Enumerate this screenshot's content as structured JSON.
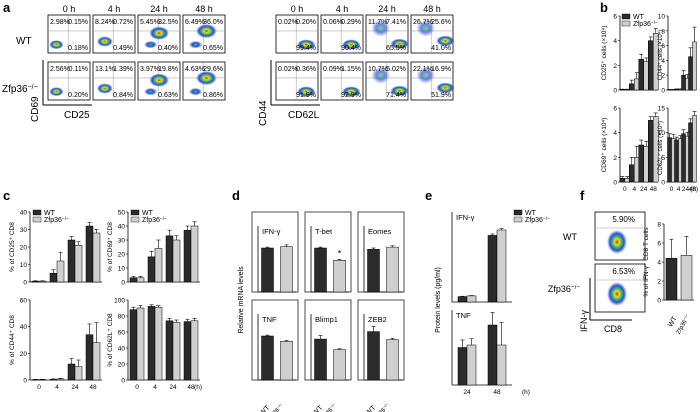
{
  "panel_letters": [
    "a",
    "b",
    "c",
    "d",
    "e",
    "f"
  ],
  "genotypes": {
    "wt": "WT",
    "ko": "Zfp36",
    "ko_sup": "−/−"
  },
  "legend": {
    "wt": "WT",
    "ko": "Zfp36",
    "ko_sup": "−/−"
  },
  "colors": {
    "wt": "#2b2b2b",
    "ko": "#cfcfcf"
  },
  "flow_a": {
    "times": [
      "0 h",
      "4 h",
      "24 h",
      "48 h"
    ],
    "cd69_cd25": {
      "xlabel": "CD25",
      "ylabel": "CD69",
      "wt": [
        [
          "2.98%",
          "0.15%",
          "0.18%"
        ],
        [
          "8.24%",
          "0.72%",
          "0.49%"
        ],
        [
          "5.45%",
          "32.5%",
          "0.40%"
        ],
        [
          "6.49%",
          "36.0%",
          "0.65%"
        ]
      ],
      "ko": [
        [
          "2.56%",
          "0.11%",
          "0.20%"
        ],
        [
          "13.1%",
          "1.39%",
          "0.84%"
        ],
        [
          "3.97%",
          "19.8%",
          "0.63%"
        ],
        [
          "4.63%",
          "29.6%",
          "0.86%"
        ]
      ]
    },
    "cd44_cd62l": {
      "xlabel": "CD62L",
      "ylabel": "CD44",
      "wt": [
        [
          "0.02%",
          "0.20%",
          "99.4%"
        ],
        [
          "0.06%",
          "0.29%",
          "90.4%"
        ],
        [
          "11.7%",
          "7.41%",
          "65.5%"
        ],
        [
          "26.7%",
          "25.6%",
          "41.0%"
        ]
      ],
      "ko": [
        [
          "0.02%",
          "0.36%",
          "91.9%"
        ],
        [
          "0.09%",
          "1.15%",
          "92.9%"
        ],
        [
          "10.7%",
          "5.02%",
          "71.4%"
        ],
        [
          "22.1%",
          "16.9%",
          "51.9%"
        ]
      ]
    }
  },
  "chart_data": [
    {
      "panel": "b",
      "type": "bar",
      "ylabel": "CD25⁺ cells (×10⁴)",
      "categories": [
        "0",
        "4",
        "24",
        "48"
      ],
      "ylim": [
        0,
        6
      ],
      "yticks": [
        0,
        2,
        4,
        6
      ],
      "series": [
        {
          "name": "WT",
          "values": [
            0.05,
            0.5,
            2.5,
            4.0
          ],
          "errors": [
            0.02,
            0.3,
            0.4,
            0.3
          ]
        },
        {
          "name": "Zfp36⁻/⁻",
          "values": [
            0.05,
            0.9,
            2.3,
            4.6
          ],
          "errors": [
            0.02,
            0.5,
            0.3,
            0.4
          ]
        }
      ]
    },
    {
      "panel": "b",
      "type": "bar",
      "ylabel": "CD44⁺ cells (×10⁴)",
      "categories": [
        "0",
        "4",
        "24",
        "48"
      ],
      "ylim": [
        0,
        10
      ],
      "yticks": [
        0,
        2,
        4,
        6,
        8,
        10
      ],
      "series": [
        {
          "name": "WT",
          "values": [
            0.05,
            0.1,
            2.0,
            4.5
          ],
          "errors": [
            0.02,
            0.05,
            0.6,
            1.2
          ]
        },
        {
          "name": "Zfp36⁻/⁻",
          "values": [
            0.05,
            0.1,
            1.6,
            6.5
          ],
          "errors": [
            0.02,
            0.05,
            0.5,
            2.0
          ]
        }
      ]
    },
    {
      "panel": "b",
      "type": "bar",
      "ylabel": "CD69⁺ cells (×10⁴)",
      "categories": [
        "0",
        "4",
        "24",
        "48"
      ],
      "ylim": [
        0,
        6
      ],
      "yticks": [
        0,
        2,
        4,
        6
      ],
      "series": [
        {
          "name": "WT",
          "values": [
            0.3,
            1.4,
            3.0,
            5.0
          ],
          "errors": [
            0.15,
            0.6,
            0.4,
            0.3
          ]
        },
        {
          "name": "Zfp36⁻/⁻",
          "values": [
            0.3,
            2.0,
            2.9,
            5.3
          ],
          "errors": [
            0.15,
            0.9,
            0.4,
            0.3
          ]
        }
      ]
    },
    {
      "panel": "b",
      "type": "bar",
      "ylabel": "CD62L⁺ cells (×10⁴)",
      "categories": [
        "0",
        "4",
        "24",
        "48"
      ],
      "ylim": [
        0,
        15
      ],
      "yticks": [
        0,
        5,
        10,
        15
      ],
      "series": [
        {
          "name": "WT",
          "values": [
            9.0,
            8.5,
            9.8,
            12.0
          ],
          "errors": [
            0.8,
            0.6,
            0.8,
            0.8
          ]
        },
        {
          "name": "Zfp36⁻/⁻",
          "values": [
            8.8,
            8.8,
            9.3,
            13.5
          ],
          "errors": [
            0.8,
            0.6,
            0.8,
            0.8
          ]
        }
      ]
    },
    {
      "panel": "c",
      "type": "bar",
      "ylabel": "% of CD25⁺ CD8",
      "categories": [
        "0",
        "4",
        "24",
        "48"
      ],
      "ylim": [
        0,
        40
      ],
      "yticks": [
        0,
        10,
        20,
        30,
        40
      ],
      "series": [
        {
          "name": "WT",
          "values": [
            0.5,
            5,
            24,
            32
          ],
          "errors": [
            0.2,
            2,
            2,
            2
          ]
        },
        {
          "name": "Zfp36⁻/⁻",
          "values": [
            0.5,
            12,
            21,
            28
          ],
          "errors": [
            0.2,
            5,
            2,
            2
          ]
        }
      ]
    },
    {
      "panel": "c",
      "type": "bar",
      "ylabel": "% of CD69⁺ CD8",
      "categories": [
        "0",
        "4",
        "24",
        "48"
      ],
      "ylim": [
        0,
        50
      ],
      "yticks": [
        0,
        10,
        20,
        30,
        40,
        50
      ],
      "series": [
        {
          "name": "WT",
          "values": [
            3,
            18,
            33,
            37
          ],
          "errors": [
            1,
            4,
            4,
            3
          ]
        },
        {
          "name": "Zfp36⁻/⁻",
          "values": [
            3,
            24,
            30,
            40
          ],
          "errors": [
            1,
            6,
            3,
            3
          ]
        }
      ]
    },
    {
      "panel": "c",
      "type": "bar",
      "ylabel": "% of CD44⁺ CD8",
      "categories": [
        "0",
        "4",
        "24",
        "48"
      ],
      "ylim": [
        0,
        60
      ],
      "yticks": [
        0,
        20,
        40,
        60
      ],
      "series": [
        {
          "name": "WT",
          "values": [
            0.3,
            0.5,
            12,
            34
          ],
          "errors": [
            0.2,
            0.3,
            4,
            8
          ]
        },
        {
          "name": "Zfp36⁻/⁻",
          "values": [
            0.3,
            0.8,
            10,
            28
          ],
          "errors": [
            0.2,
            0.5,
            5,
            15
          ]
        }
      ]
    },
    {
      "panel": "c",
      "type": "bar",
      "ylabel": "% of CD62L⁺ CD8",
      "categories": [
        "0",
        "4",
        "24",
        "48"
      ],
      "ylim": [
        0,
        100
      ],
      "yticks": [
        0,
        20,
        40,
        60,
        80,
        100
      ],
      "series": [
        {
          "name": "WT",
          "values": [
            88,
            92,
            74,
            73
          ],
          "errors": [
            3,
            2,
            3,
            3
          ]
        },
        {
          "name": "Zfp36⁻/⁻",
          "values": [
            90,
            91,
            72,
            74
          ],
          "errors": [
            3,
            2,
            3,
            3
          ]
        }
      ]
    },
    {
      "panel": "d",
      "type": "bar",
      "title": "IFN-γ",
      "categories": [
        "WT",
        "Zfp36⁻/⁻"
      ],
      "ylim": [
        0,
        1.5
      ],
      "values": [
        1.0,
        1.03
      ],
      "errors": [
        0.02,
        0.04
      ]
    },
    {
      "panel": "d",
      "type": "bar",
      "title": "T-bet",
      "categories": [
        "WT",
        "Zfp36⁻/⁻"
      ],
      "ylim": [
        0,
        1.5
      ],
      "values": [
        1.0,
        0.72
      ],
      "errors": [
        0.02,
        0.02
      ],
      "annotation": "*"
    },
    {
      "panel": "d",
      "type": "bar",
      "title": "Eomes",
      "categories": [
        "WT",
        "Zfp36⁻/⁻"
      ],
      "ylim": [
        0,
        1.5
      ],
      "values": [
        0.97,
        1.02
      ],
      "errors": [
        0.03,
        0.03
      ]
    },
    {
      "panel": "d",
      "type": "bar",
      "title": "TNF",
      "categories": [
        "WT",
        "Zfp36⁻/⁻"
      ],
      "ylim": [
        0,
        1.5
      ],
      "values": [
        1.0,
        0.88
      ],
      "errors": [
        0.02,
        0.02
      ]
    },
    {
      "panel": "d",
      "type": "bar",
      "title": "Blimp1",
      "categories": [
        "WT",
        "Zfp36⁻/⁻"
      ],
      "ylim": [
        0,
        1.5
      ],
      "values": [
        0.93,
        0.69
      ],
      "errors": [
        0.08,
        0.02
      ]
    },
    {
      "panel": "d",
      "type": "bar",
      "title": "ZEB2",
      "categories": [
        "WT",
        "Zfp36⁻/⁻"
      ],
      "ylim": [
        0,
        1.5
      ],
      "values": [
        1.1,
        0.92
      ],
      "errors": [
        0.12,
        0.03
      ]
    },
    {
      "panel": "e",
      "type": "bar",
      "title": "IFN-γ",
      "categories": [
        "24",
        "48"
      ],
      "ylim": [
        0,
        2500
      ],
      "series": [
        {
          "name": "WT",
          "values": [
            150,
            1850
          ],
          "errors": [
            10,
            40
          ]
        },
        {
          "name": "Zfp36⁻/⁻",
          "values": [
            170,
            2000
          ],
          "errors": [
            10,
            40
          ]
        }
      ]
    },
    {
      "panel": "e",
      "type": "bar",
      "title": "TNF",
      "categories": [
        "24",
        "48"
      ],
      "ylim": [
        0,
        300
      ],
      "series": [
        {
          "name": "WT",
          "values": [
            150,
            240
          ],
          "errors": [
            30,
            50
          ]
        },
        {
          "name": "Zfp36⁻/⁻",
          "values": [
            160,
            160
          ],
          "errors": [
            25,
            90
          ]
        }
      ]
    },
    {
      "panel": "f",
      "type": "bar",
      "ylabel": "% of IFN-γ⁺ CD8 T cells",
      "categories": [
        "WT",
        "Zfp36⁻/⁻"
      ],
      "ylim": [
        0,
        8
      ],
      "yticks": [
        0,
        2,
        4,
        6,
        8
      ],
      "values": [
        4.4,
        4.7
      ],
      "errors": [
        2.0,
        2.0
      ]
    }
  ],
  "panel_d": {
    "ylabel": "Relative mRNA levels"
  },
  "panel_e": {
    "ylabel": "Protein levels (pg/ml)",
    "unit_h": "(h)"
  },
  "panel_f": {
    "wt_pct": "5.90%",
    "ko_pct": "6.53%",
    "xlabel": "CD8",
    "ylabel": "IFN-γ",
    "wt_label": "WT",
    "ko_label": "Zfp36"
  },
  "time_unit": "(h)"
}
